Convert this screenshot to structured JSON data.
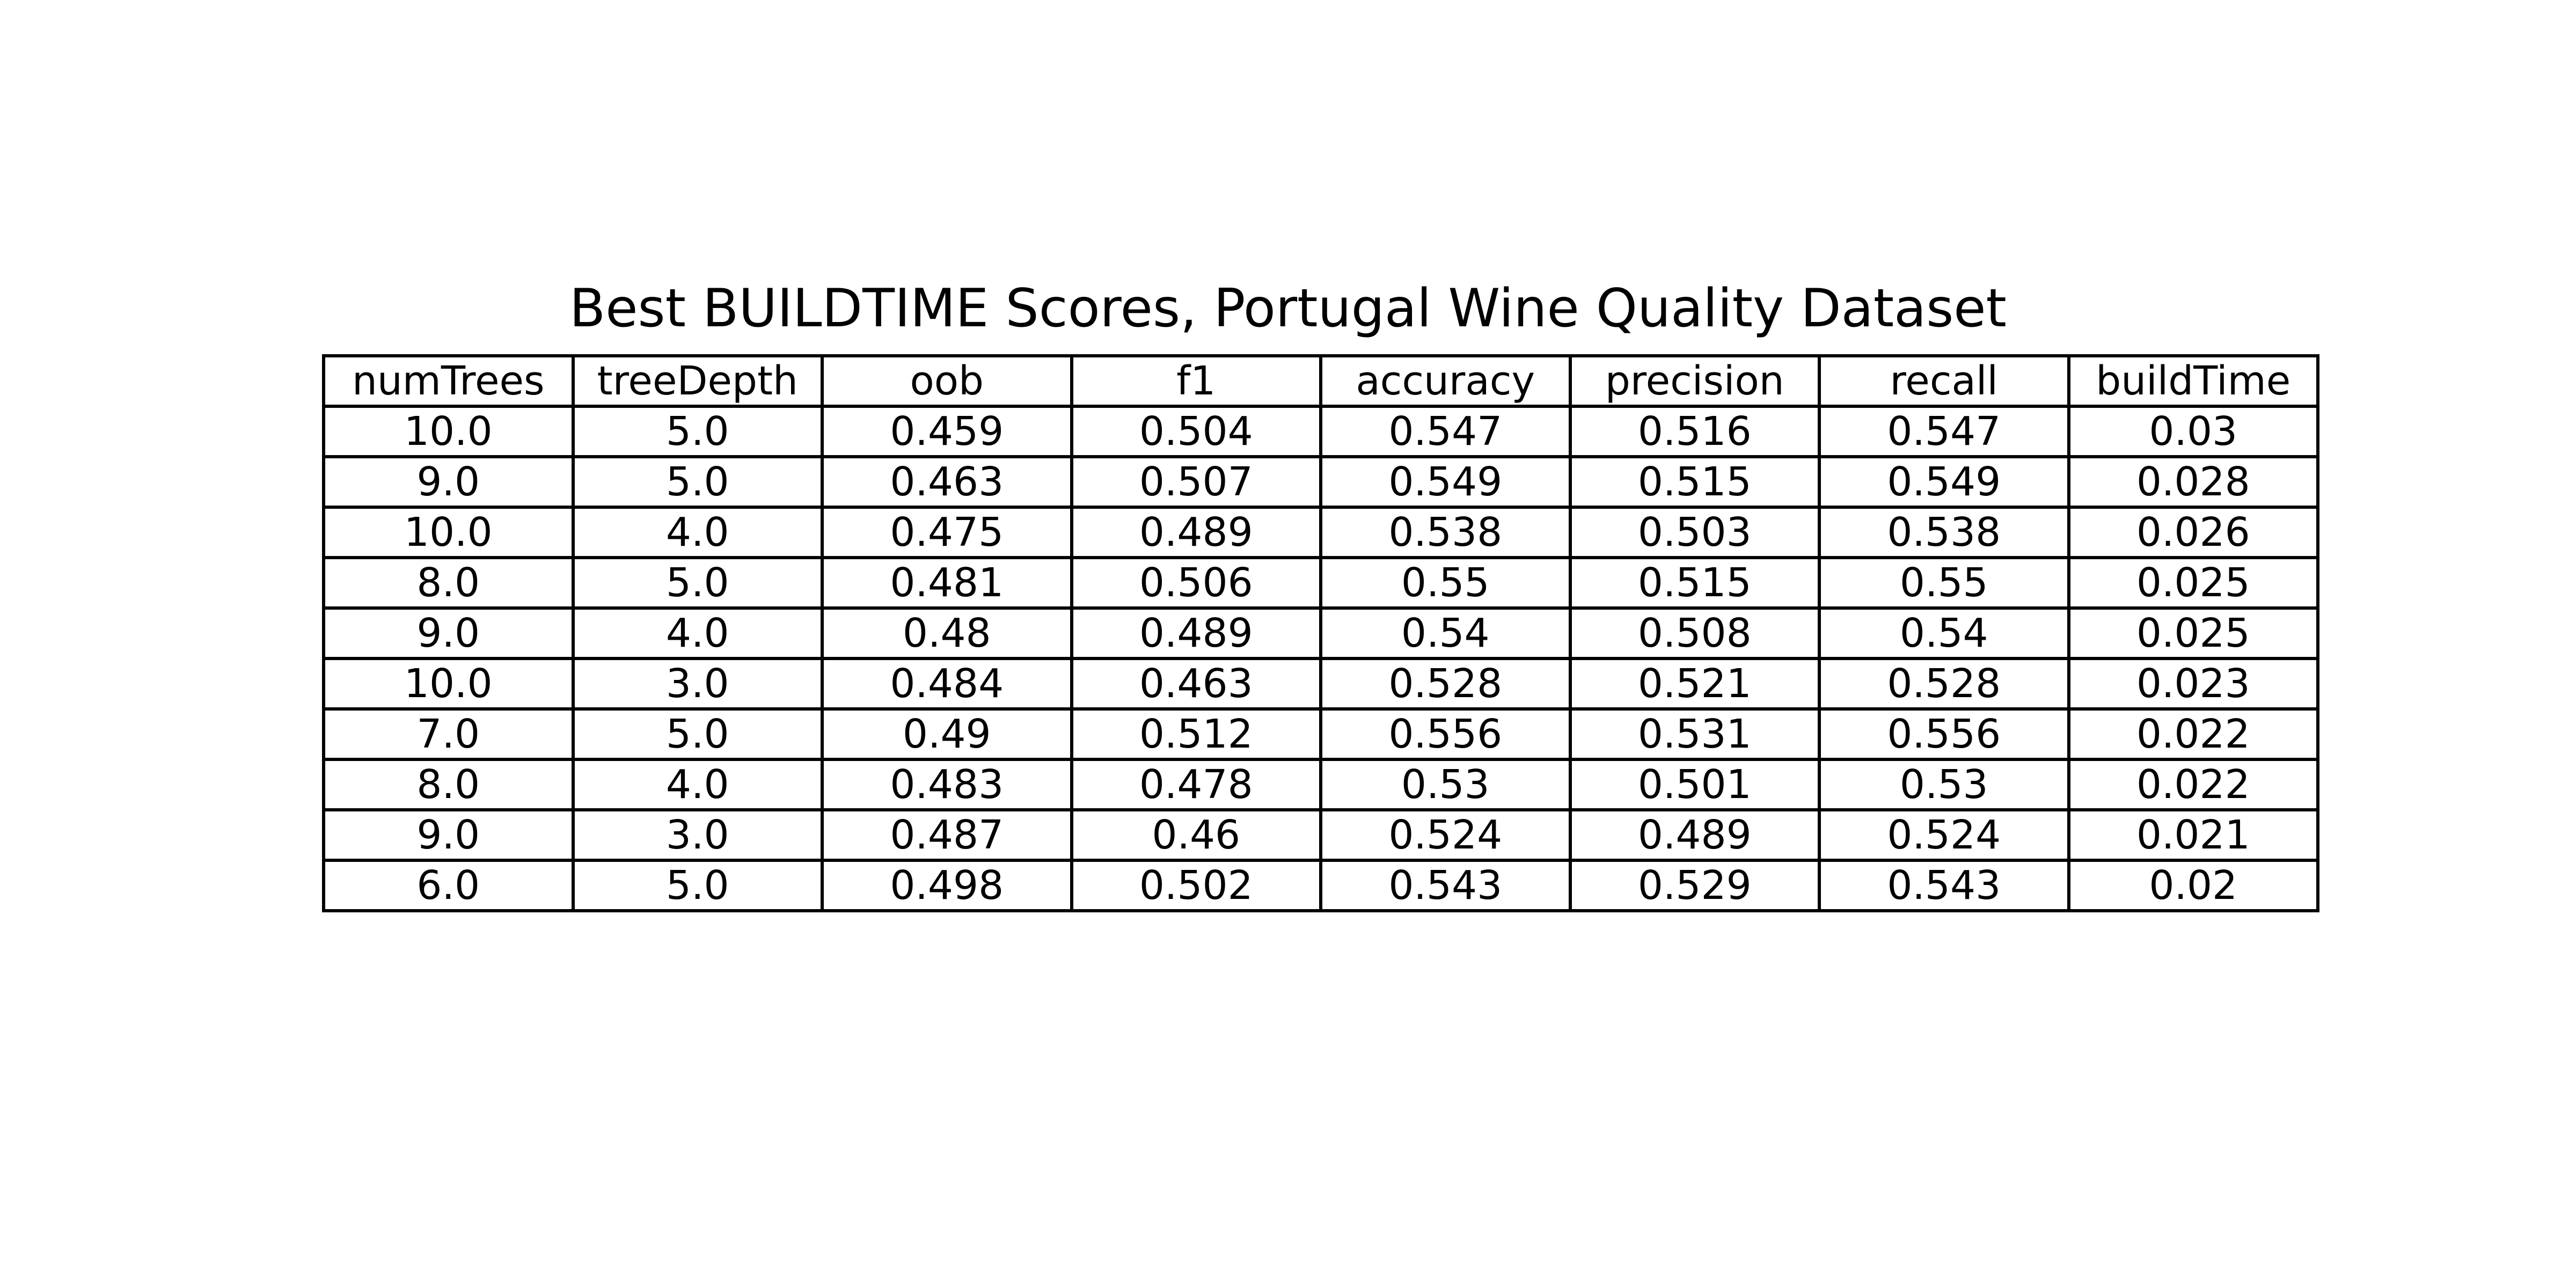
{
  "chart_data": {
    "type": "table",
    "title": "Best BUILDTIME Scores, Portugal Wine Quality Dataset",
    "columns": [
      "numTrees",
      "treeDepth",
      "oob",
      "f1",
      "accuracy",
      "precision",
      "recall",
      "buildTime"
    ],
    "rows": [
      [
        "10.0",
        "5.0",
        "0.459",
        "0.504",
        "0.547",
        "0.516",
        "0.547",
        "0.03"
      ],
      [
        "9.0",
        "5.0",
        "0.463",
        "0.507",
        "0.549",
        "0.515",
        "0.549",
        "0.028"
      ],
      [
        "10.0",
        "4.0",
        "0.475",
        "0.489",
        "0.538",
        "0.503",
        "0.538",
        "0.026"
      ],
      [
        "8.0",
        "5.0",
        "0.481",
        "0.506",
        "0.55",
        "0.515",
        "0.55",
        "0.025"
      ],
      [
        "9.0",
        "4.0",
        "0.48",
        "0.489",
        "0.54",
        "0.508",
        "0.54",
        "0.025"
      ],
      [
        "10.0",
        "3.0",
        "0.484",
        "0.463",
        "0.528",
        "0.521",
        "0.528",
        "0.023"
      ],
      [
        "7.0",
        "5.0",
        "0.49",
        "0.512",
        "0.556",
        "0.531",
        "0.556",
        "0.022"
      ],
      [
        "8.0",
        "4.0",
        "0.483",
        "0.478",
        "0.53",
        "0.501",
        "0.53",
        "0.022"
      ],
      [
        "9.0",
        "3.0",
        "0.487",
        "0.46",
        "0.524",
        "0.489",
        "0.524",
        "0.021"
      ],
      [
        "6.0",
        "5.0",
        "0.498",
        "0.502",
        "0.543",
        "0.529",
        "0.543",
        "0.02"
      ]
    ]
  }
}
